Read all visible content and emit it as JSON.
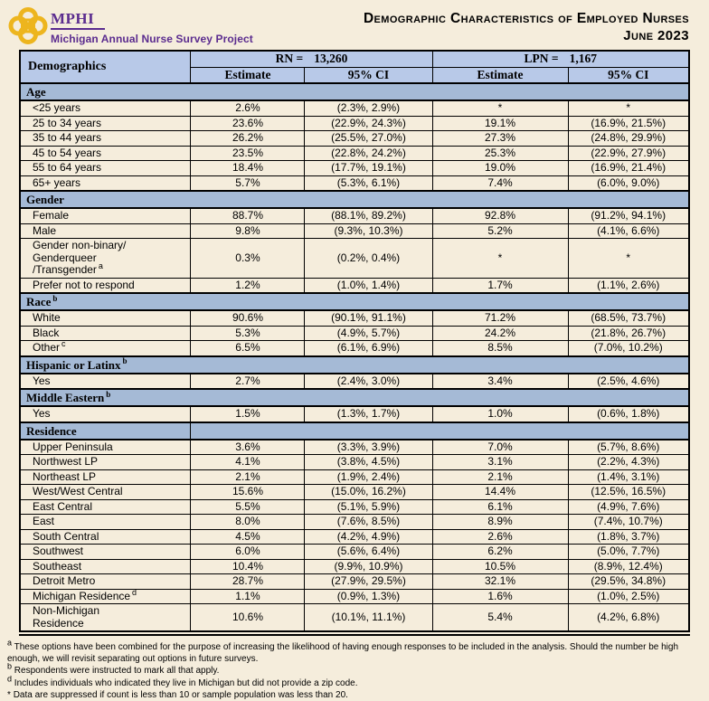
{
  "logo": {
    "org": "MPHI",
    "project": "Michigan Annual Nurse Survey Project"
  },
  "title": {
    "line1": "Demographic Characteristics of Employed Nurses",
    "line2": "June 2023"
  },
  "colors": {
    "page_bg": "#F5EDDC",
    "header_blue": "#B8C9E8",
    "section_blue": "#A5BAD6",
    "brand_purple": "#5B2C8F",
    "brand_gold": "#EDB51E",
    "border_black": "#000000"
  },
  "table": {
    "demographics_header": "Demographics",
    "groups": [
      {
        "label": "RN =",
        "count": "13,260"
      },
      {
        "label": "LPN =",
        "count": "1,167"
      }
    ],
    "subheaders": [
      "Estimate",
      "95% CI",
      "Estimate",
      "95% CI"
    ],
    "sections": [
      {
        "title": "Age",
        "sup": "",
        "divided": false,
        "rows": [
          {
            "label": "<25 years",
            "sup": "",
            "cells": [
              "2.6%",
              "(2.3%, 2.9%)",
              "*",
              "*"
            ]
          },
          {
            "label": "25 to 34 years",
            "sup": "",
            "cells": [
              "23.6%",
              "(22.9%, 24.3%)",
              "19.1%",
              "(16.9%, 21.5%)"
            ]
          },
          {
            "label": "35 to 44 years",
            "sup": "",
            "cells": [
              "26.2%",
              "(25.5%, 27.0%)",
              "27.3%",
              "(24.8%, 29.9%)"
            ]
          },
          {
            "label": "45 to 54 years",
            "sup": "",
            "cells": [
              "23.5%",
              "(22.8%, 24.2%)",
              "25.3%",
              "(22.9%, 27.9%)"
            ]
          },
          {
            "label": "55 to 64 years",
            "sup": "",
            "cells": [
              "18.4%",
              "(17.7%, 19.1%)",
              "19.0%",
              "(16.9%, 21.4%)"
            ]
          },
          {
            "label": "65+ years",
            "sup": "",
            "cells": [
              "5.7%",
              "(5.3%, 6.1%)",
              "7.4%",
              "(6.0%, 9.0%)"
            ]
          }
        ]
      },
      {
        "title": "Gender",
        "sup": "",
        "divided": false,
        "rows": [
          {
            "label": "Female",
            "sup": "",
            "cells": [
              "88.7%",
              "(88.1%, 89.2%)",
              "92.8%",
              "(91.2%, 94.1%)"
            ]
          },
          {
            "label": "Male",
            "sup": "",
            "cells": [
              "9.8%",
              "(9.3%, 10.3%)",
              "5.2%",
              "(4.1%, 6.6%)"
            ]
          },
          {
            "label": "Gender non-binary/\nGenderqueer\n/Transgender",
            "sup": "a",
            "cells": [
              "0.3%",
              "(0.2%, 0.4%)",
              "*",
              "*"
            ]
          },
          {
            "label": "Prefer not to respond",
            "sup": "",
            "cells": [
              "1.2%",
              "(1.0%, 1.4%)",
              "1.7%",
              "(1.1%, 2.6%)"
            ]
          }
        ]
      },
      {
        "title": "Race",
        "sup": "b",
        "divided": false,
        "rows": [
          {
            "label": "White",
            "sup": "",
            "cells": [
              "90.6%",
              "(90.1%, 91.1%)",
              "71.2%",
              "(68.5%, 73.7%)"
            ]
          },
          {
            "label": "Black",
            "sup": "",
            "cells": [
              "5.3%",
              "(4.9%, 5.7%)",
              "24.2%",
              "(21.8%, 26.7%)"
            ]
          },
          {
            "label": "Other",
            "sup": "c",
            "cells": [
              "6.5%",
              "(6.1%, 6.9%)",
              "8.5%",
              "(7.0%, 10.2%)"
            ]
          }
        ]
      },
      {
        "title": "Hispanic or Latinx",
        "sup": "b",
        "divided": false,
        "rows": [
          {
            "label": "Yes",
            "sup": "",
            "cells": [
              "2.7%",
              "(2.4%, 3.0%)",
              "3.4%",
              "(2.5%, 4.6%)"
            ]
          }
        ]
      },
      {
        "title": "Middle Eastern",
        "sup": "b",
        "divided": false,
        "rows": [
          {
            "label": "Yes",
            "sup": "",
            "cells": [
              "1.5%",
              "(1.3%, 1.7%)",
              "1.0%",
              "(0.6%, 1.8%)"
            ]
          }
        ]
      },
      {
        "title": "Residence",
        "sup": "",
        "divided": true,
        "rows": [
          {
            "label": "Upper Peninsula",
            "sup": "",
            "cells": [
              "3.6%",
              "(3.3%, 3.9%)",
              "7.0%",
              "(5.7%, 8.6%)"
            ]
          },
          {
            "label": "Northwest LP",
            "sup": "",
            "cells": [
              "4.1%",
              "(3.8%, 4.5%)",
              "3.1%",
              "(2.2%, 4.3%)"
            ]
          },
          {
            "label": "Northeast LP",
            "sup": "",
            "cells": [
              "2.1%",
              "(1.9%, 2.4%)",
              "2.1%",
              "(1.4%, 3.1%)"
            ]
          },
          {
            "label": "West/West Central",
            "sup": "",
            "cells": [
              "15.6%",
              "(15.0%, 16.2%)",
              "14.4%",
              "(12.5%, 16.5%)"
            ]
          },
          {
            "label": "East Central",
            "sup": "",
            "cells": [
              "5.5%",
              "(5.1%, 5.9%)",
              "6.1%",
              "(4.9%, 7.6%)"
            ]
          },
          {
            "label": "East",
            "sup": "",
            "cells": [
              "8.0%",
              "(7.6%, 8.5%)",
              "8.9%",
              "(7.4%, 10.7%)"
            ]
          },
          {
            "label": "South Central",
            "sup": "",
            "cells": [
              "4.5%",
              "(4.2%, 4.9%)",
              "2.6%",
              "(1.8%, 3.7%)"
            ]
          },
          {
            "label": "Southwest",
            "sup": "",
            "cells": [
              "6.0%",
              "(5.6%, 6.4%)",
              "6.2%",
              "(5.0%, 7.7%)"
            ]
          },
          {
            "label": "Southeast",
            "sup": "",
            "cells": [
              "10.4%",
              "(9.9%, 10.9%)",
              "10.5%",
              "(8.9%, 12.4%)"
            ]
          },
          {
            "label": "Detroit Metro",
            "sup": "",
            "cells": [
              "28.7%",
              "(27.9%, 29.5%)",
              "32.1%",
              "(29.5%, 34.8%)"
            ]
          },
          {
            "label": "Michigan Residence",
            "sup": "d",
            "cells": [
              "1.1%",
              "(0.9%, 1.3%)",
              "1.6%",
              "(1.0%, 2.5%)"
            ]
          },
          {
            "label": "Non-Michigan\nResidence",
            "sup": "",
            "cells": [
              "10.6%",
              "(10.1%, 11.1%)",
              "5.4%",
              "(4.2%, 6.8%)"
            ]
          }
        ]
      }
    ]
  },
  "footnotes": [
    {
      "marker": "a",
      "superscript": true,
      "text": "These options have been combined for the purpose of increasing the likelihood of having enough responses to be included in the analysis. Should the number be high enough, we will revisit separating out options in future surveys."
    },
    {
      "marker": "b",
      "superscript": true,
      "text": "Respondents were instructed to mark all that apply."
    },
    {
      "marker": "d",
      "superscript": true,
      "text": "Includes individuals who indicated they live in Michigan but did not provide a zip code."
    },
    {
      "marker": "*",
      "superscript": false,
      "text": "Data are suppressed if count is less than 10 or sample population was less than 20."
    }
  ]
}
